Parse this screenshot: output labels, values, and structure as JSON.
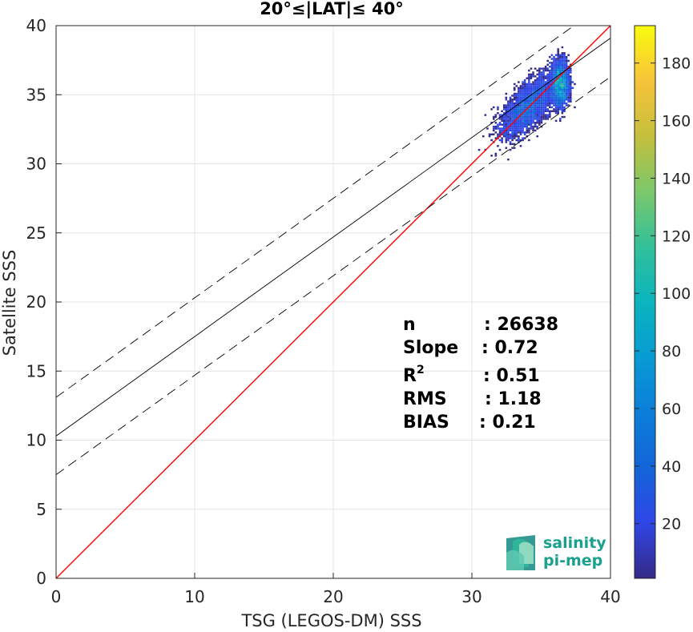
{
  "chart_data": {
    "type": "heatmap",
    "title": "20°≤|LAT|≤ 40°",
    "xlabel": "TSG (LEGOS-DM) SSS",
    "ylabel": "Satellite SSS",
    "xlim": [
      0,
      40
    ],
    "ylim": [
      0,
      40
    ],
    "x_ticks": [
      "0",
      "10",
      "20",
      "30",
      "40"
    ],
    "y_ticks": [
      "0",
      "5",
      "10",
      "15",
      "20",
      "25",
      "30",
      "35",
      "40"
    ],
    "grid": true,
    "colorbar": {
      "range": [
        1,
        193
      ],
      "ticks": [
        "20",
        "40",
        "60",
        "80",
        "100",
        "120",
        "140",
        "160",
        "180"
      ],
      "colormap": "parula"
    },
    "density_cluster": {
      "x_range": [
        30.5,
        37.5
      ],
      "y_range": [
        29,
        39.5
      ],
      "peak": [
        36.4,
        35.8
      ]
    },
    "lines": [
      {
        "name": "1:1",
        "slope": 1.0,
        "intercept": 0.0,
        "color": "#ff0000",
        "style": "solid"
      },
      {
        "name": "fit",
        "slope": 0.72,
        "intercept": 10.3,
        "color": "#000000",
        "style": "solid"
      },
      {
        "name": "fit-upper",
        "slope": 0.72,
        "intercept": 13.1,
        "color": "#000000",
        "style": "dashed"
      },
      {
        "name": "fit-lower",
        "slope": 0.72,
        "intercept": 7.5,
        "color": "#000000",
        "style": "dashed"
      }
    ],
    "stats": [
      {
        "label": "n",
        "value": ": 26638"
      },
      {
        "label": "Slope",
        "value": ": 0.72"
      },
      {
        "label": "R",
        "sup": "2",
        "value": ": 0.51"
      },
      {
        "label": "RMS",
        "value": ": 1.18"
      },
      {
        "label": "BIAS",
        "value": ": 0.21"
      }
    ]
  },
  "logo": {
    "line1": "salinity",
    "line2": "pi-mep"
  }
}
